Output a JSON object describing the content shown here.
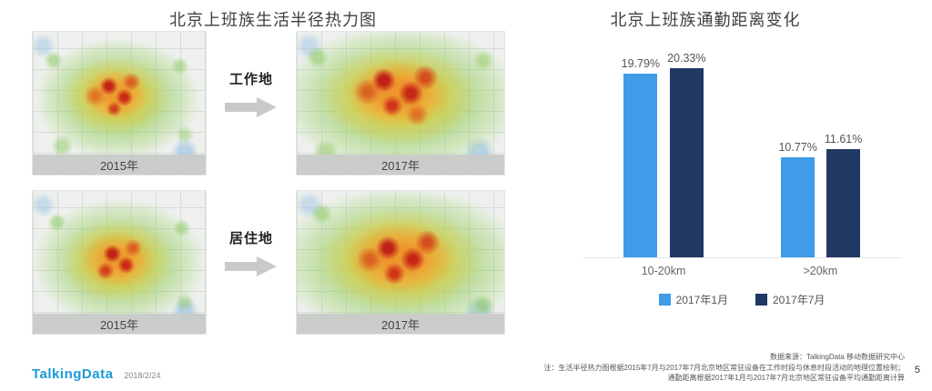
{
  "slide": {
    "left": {
      "title": "北京上班族生活半径热力图",
      "rows": [
        {
          "label": "工作地",
          "maps": [
            {
              "caption": "2015年"
            },
            {
              "caption": "2017年"
            }
          ]
        },
        {
          "label": "居住地",
          "maps": [
            {
              "caption": "2015年"
            },
            {
              "caption": "2017年"
            }
          ]
        }
      ]
    },
    "footer": {
      "logo": "TalkingData",
      "date": "2018/2/24",
      "source": "数据来源：TalkingData 移动数据研究中心",
      "note_line1": "注：生活半径热力图根据2015年7月与2017年7月北京地区常驻设备在工作时段与休息时段活动的地理位置绘制；",
      "note_line2": "通勤距离根据2017年1月与2017年7月北京地区常驻设备平均通勤距离计算",
      "page_number": "5"
    }
  },
  "chart_data": {
    "type": "bar",
    "title": "北京上班族通勤距离变化",
    "categories": [
      "10-20km",
      ">20km"
    ],
    "series": [
      {
        "name": "2017年1月",
        "color": "#3E9CE9",
        "values": [
          19.79,
          10.77
        ],
        "labels": [
          "19.79%",
          "10.77%"
        ]
      },
      {
        "name": "2017年7月",
        "color": "#1F3864",
        "values": [
          20.33,
          11.61
        ],
        "labels": [
          "20.33%",
          "11.61%"
        ]
      }
    ],
    "ylim": [
      0,
      22
    ],
    "grid": false,
    "legend_position": "bottom",
    "value_label_format": "percent"
  }
}
